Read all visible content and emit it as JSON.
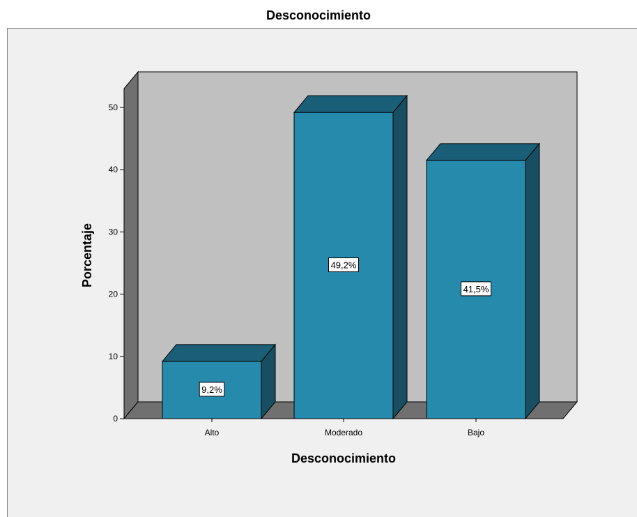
{
  "chart_data": {
    "type": "bar",
    "title": "Desconocimiento",
    "xlabel": "Desconocimiento",
    "ylabel": "Porcentaje",
    "categories": [
      "Alto",
      "Moderado",
      "Bajo"
    ],
    "values": [
      9.2,
      49.2,
      41.5
    ],
    "data_labels": [
      "9,2%",
      "49,2%",
      "41,5%"
    ],
    "y_ticks": [
      "0",
      "10",
      "20",
      "30",
      "40",
      "50"
    ],
    "ylim": [
      0,
      50
    ],
    "grid": false,
    "legend": "none",
    "style": "3d",
    "colors": {
      "bar_front": "#268aad",
      "bar_top": "#1b5e77",
      "bar_side": "#184e62",
      "back_wall": "#c0c0c0",
      "left_wall": "#707070",
      "floor": "#707070",
      "frame_bg": "#f0f0f0"
    }
  }
}
